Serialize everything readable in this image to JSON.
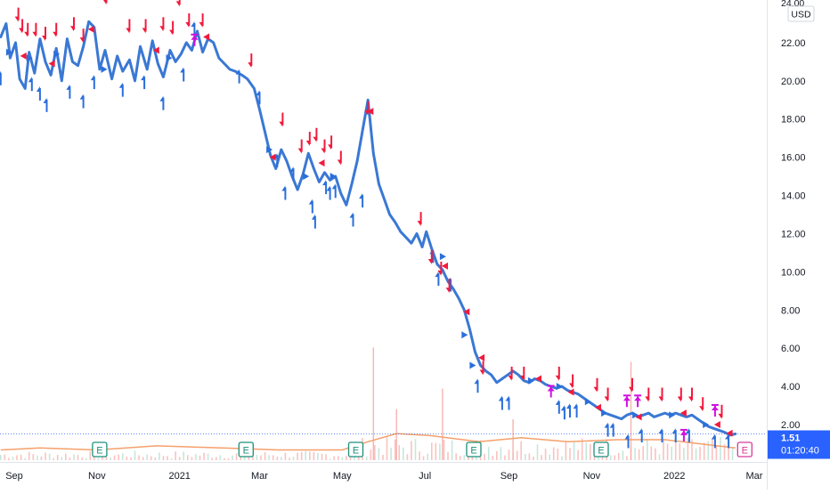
{
  "chart_data": {
    "type": "line",
    "currency": "USD",
    "x_ticks": [
      "Sep",
      "Nov",
      "2021",
      "Mar",
      "May",
      "Jul",
      "Sep",
      "Nov",
      "2022",
      "Mar"
    ],
    "y_ticks": [
      "24.00",
      "22.00",
      "20.00",
      "18.00",
      "16.00",
      "14.00",
      "12.00",
      "10.00",
      "8.00",
      "6.00",
      "4.00",
      "2.00"
    ],
    "ylim": [
      0.5,
      24.2
    ],
    "grid": false,
    "series": [
      {
        "points": [
          [
            "2020-08-22",
            22.3
          ],
          [
            "2020-08-26",
            23.0
          ],
          [
            "2020-08-29",
            21.2
          ],
          [
            "2020-09-02",
            22.0
          ],
          [
            "2020-09-05",
            20.1
          ],
          [
            "2020-09-09",
            19.6
          ],
          [
            "2020-09-12",
            21.5
          ],
          [
            "2020-09-16",
            20.4
          ],
          [
            "2020-09-20",
            22.2
          ],
          [
            "2020-09-24",
            21.0
          ],
          [
            "2020-09-28",
            20.3
          ],
          [
            "2020-10-02",
            21.7
          ],
          [
            "2020-10-06",
            20.0
          ],
          [
            "2020-10-10",
            22.2
          ],
          [
            "2020-10-14",
            21.0
          ],
          [
            "2020-10-18",
            20.8
          ],
          [
            "2020-10-22",
            21.8
          ],
          [
            "2020-10-26",
            23.1
          ],
          [
            "2020-10-30",
            22.8
          ],
          [
            "2020-11-03",
            20.6
          ],
          [
            "2020-11-07",
            21.6
          ],
          [
            "2020-11-12",
            20.1
          ],
          [
            "2020-11-16",
            21.3
          ],
          [
            "2020-11-20",
            20.5
          ],
          [
            "2020-11-25",
            21.1
          ],
          [
            "2020-11-29",
            20.0
          ],
          [
            "2020-12-03",
            21.8
          ],
          [
            "2020-12-08",
            20.6
          ],
          [
            "2020-12-12",
            22.1
          ],
          [
            "2020-12-16",
            20.9
          ],
          [
            "2020-12-20",
            20.2
          ],
          [
            "2020-12-25",
            21.6
          ],
          [
            "2020-12-29",
            21.0
          ],
          [
            "2021-01-02",
            21.4
          ],
          [
            "2021-01-06",
            22.0
          ],
          [
            "2021-01-10",
            21.6
          ],
          [
            "2021-01-14",
            22.6
          ],
          [
            "2021-01-18",
            21.5
          ],
          [
            "2021-01-22",
            22.2
          ],
          [
            "2021-01-26",
            22.0
          ],
          [
            "2021-01-30",
            21.2
          ],
          [
            "2021-02-03",
            20.9
          ],
          [
            "2021-02-07",
            20.6
          ],
          [
            "2021-02-11",
            20.5
          ],
          [
            "2021-02-16",
            20.3
          ],
          [
            "2021-02-20",
            20.1
          ],
          [
            "2021-02-25",
            19.6
          ],
          [
            "2021-03-01",
            18.5
          ],
          [
            "2021-03-05",
            17.3
          ],
          [
            "2021-03-09",
            16.1
          ],
          [
            "2021-03-13",
            15.4
          ],
          [
            "2021-03-17",
            16.4
          ],
          [
            "2021-03-21",
            15.8
          ],
          [
            "2021-03-25",
            15.0
          ],
          [
            "2021-03-29",
            14.3
          ],
          [
            "2021-04-02",
            15.1
          ],
          [
            "2021-04-06",
            16.2
          ],
          [
            "2021-04-10",
            15.4
          ],
          [
            "2021-04-14",
            14.7
          ],
          [
            "2021-04-18",
            15.2
          ],
          [
            "2021-04-22",
            14.8
          ],
          [
            "2021-04-26",
            15.0
          ],
          [
            "2021-04-30",
            14.1
          ],
          [
            "2021-05-04",
            13.5
          ],
          [
            "2021-05-08",
            14.6
          ],
          [
            "2021-05-12",
            15.8
          ],
          [
            "2021-05-16",
            17.4
          ],
          [
            "2021-05-20",
            19.0
          ],
          [
            "2021-05-24",
            16.2
          ],
          [
            "2021-05-28",
            14.6
          ],
          [
            "2021-06-01",
            13.8
          ],
          [
            "2021-06-05",
            13.0
          ],
          [
            "2021-06-09",
            12.6
          ],
          [
            "2021-06-13",
            12.1
          ],
          [
            "2021-06-17",
            11.8
          ],
          [
            "2021-06-21",
            11.5
          ],
          [
            "2021-06-25",
            12.0
          ],
          [
            "2021-06-29",
            11.3
          ],
          [
            "2021-07-02",
            12.1
          ],
          [
            "2021-07-06",
            11.2
          ],
          [
            "2021-07-10",
            10.4
          ],
          [
            "2021-07-14",
            10.1
          ],
          [
            "2021-07-18",
            9.5
          ],
          [
            "2021-07-22",
            9.1
          ],
          [
            "2021-07-26",
            8.6
          ],
          [
            "2021-07-30",
            8.0
          ],
          [
            "2021-08-03",
            7.0
          ],
          [
            "2021-08-07",
            5.8
          ],
          [
            "2021-08-11",
            5.1
          ],
          [
            "2021-08-15",
            4.8
          ],
          [
            "2021-08-19",
            4.6
          ],
          [
            "2021-08-23",
            4.2
          ],
          [
            "2021-08-27",
            4.4
          ],
          [
            "2021-08-31",
            4.6
          ],
          [
            "2021-09-04",
            4.8
          ],
          [
            "2021-09-08",
            4.6
          ],
          [
            "2021-09-12",
            4.3
          ],
          [
            "2021-09-16",
            4.2
          ],
          [
            "2021-09-20",
            4.4
          ],
          [
            "2021-09-24",
            4.3
          ],
          [
            "2021-09-28",
            4.1
          ],
          [
            "2021-10-02",
            4.0
          ],
          [
            "2021-10-06",
            3.9
          ],
          [
            "2021-10-10",
            4.0
          ],
          [
            "2021-10-14",
            3.8
          ],
          [
            "2021-10-18",
            3.7
          ],
          [
            "2021-10-22",
            3.6
          ],
          [
            "2021-10-26",
            3.4
          ],
          [
            "2021-10-30",
            3.2
          ],
          [
            "2021-11-03",
            3.0
          ],
          [
            "2021-11-07",
            2.8
          ],
          [
            "2021-11-11",
            2.6
          ],
          [
            "2021-11-15",
            2.5
          ],
          [
            "2021-11-19",
            2.4
          ],
          [
            "2021-11-23",
            2.3
          ],
          [
            "2021-11-27",
            2.5
          ],
          [
            "2021-12-01",
            2.6
          ],
          [
            "2021-12-05",
            2.4
          ],
          [
            "2021-12-09",
            2.5
          ],
          [
            "2021-12-13",
            2.6
          ],
          [
            "2021-12-17",
            2.4
          ],
          [
            "2021-12-21",
            2.5
          ],
          [
            "2021-12-25",
            2.6
          ],
          [
            "2021-12-29",
            2.5
          ],
          [
            "2022-01-02",
            2.6
          ],
          [
            "2022-01-06",
            2.5
          ],
          [
            "2022-01-10",
            2.4
          ],
          [
            "2022-01-14",
            2.5
          ],
          [
            "2022-01-18",
            2.3
          ],
          [
            "2022-01-22",
            2.1
          ],
          [
            "2022-01-26",
            1.9
          ],
          [
            "2022-01-30",
            1.8
          ],
          [
            "2022-02-03",
            1.7
          ],
          [
            "2022-02-07",
            1.6
          ],
          [
            "2022-02-11",
            1.45
          ],
          [
            "2022-02-15",
            1.51
          ]
        ]
      }
    ],
    "up_arrows": [
      [
        "2020-08-22",
        20.0
      ],
      [
        "2020-09-14",
        19.7
      ],
      [
        "2020-09-20",
        19.2
      ],
      [
        "2020-09-25",
        18.6
      ],
      [
        "2020-10-12",
        19.3
      ],
      [
        "2020-10-22",
        18.8
      ],
      [
        "2020-10-30",
        19.8
      ],
      [
        "2020-11-20",
        19.4
      ],
      [
        "2020-12-06",
        19.8
      ],
      [
        "2020-12-20",
        18.7
      ],
      [
        "2021-01-04",
        20.2
      ],
      [
        "2021-01-12",
        22.6
      ],
      [
        "2021-02-14",
        20.1
      ],
      [
        "2021-03-01",
        19.0
      ],
      [
        "2021-03-14",
        15.7
      ],
      [
        "2021-03-20",
        14.0
      ],
      [
        "2021-03-26",
        15.0
      ],
      [
        "2021-04-09",
        13.3
      ],
      [
        "2021-04-11",
        12.5
      ],
      [
        "2021-04-19",
        14.3
      ],
      [
        "2021-04-22",
        14.0
      ],
      [
        "2021-04-26",
        14.1
      ],
      [
        "2021-05-09",
        12.6
      ],
      [
        "2021-05-16",
        13.6
      ],
      [
        "2021-07-07",
        10.7
      ],
      [
        "2021-07-11",
        9.5
      ],
      [
        "2021-07-20",
        9.2
      ],
      [
        "2021-08-09",
        3.9
      ],
      [
        "2021-08-27",
        3.0
      ],
      [
        "2021-09-01",
        3.0
      ],
      [
        "2021-10-08",
        2.8
      ],
      [
        "2021-10-12",
        2.5
      ],
      [
        "2021-10-16",
        2.6
      ],
      [
        "2021-10-21",
        2.6
      ],
      [
        "2021-11-13",
        1.6
      ],
      [
        "2021-11-17",
        1.6
      ],
      [
        "2021-11-28",
        1.0
      ],
      [
        "2021-12-08",
        1.3
      ],
      [
        "2021-12-23",
        1.3
      ],
      [
        "2022-01-02",
        1.3
      ],
      [
        "2022-01-12",
        1.3
      ],
      [
        "2022-01-31",
        1.0
      ],
      [
        "2022-02-10",
        1.0
      ]
    ],
    "down_arrows": [
      [
        "2020-09-04",
        23.6
      ],
      [
        "2020-09-07",
        23.0
      ],
      [
        "2020-09-11",
        22.8
      ],
      [
        "2020-09-17",
        22.8
      ],
      [
        "2020-09-24",
        22.6
      ],
      [
        "2020-10-02",
        22.8
      ],
      [
        "2020-10-15",
        23.1
      ],
      [
        "2020-10-22",
        22.5
      ],
      [
        "2020-11-08",
        24.5
      ],
      [
        "2020-11-25",
        23.0
      ],
      [
        "2020-12-07",
        23.0
      ],
      [
        "2020-12-20",
        23.1
      ],
      [
        "2020-12-27",
        22.9
      ],
      [
        "2021-01-01",
        24.4
      ],
      [
        "2021-01-08",
        23.3
      ],
      [
        "2021-01-18",
        23.3
      ],
      [
        "2021-02-23",
        21.2
      ],
      [
        "2021-03-18",
        18.1
      ],
      [
        "2021-04-01",
        16.7
      ],
      [
        "2021-04-07",
        17.1
      ],
      [
        "2021-04-12",
        17.3
      ],
      [
        "2021-04-18",
        16.7
      ],
      [
        "2021-04-23",
        16.9
      ],
      [
        "2021-04-30",
        16.1
      ],
      [
        "2021-05-20",
        18.7
      ],
      [
        "2021-06-28",
        12.9
      ],
      [
        "2021-07-06",
        10.9
      ],
      [
        "2021-07-13",
        10.3
      ],
      [
        "2021-07-19",
        9.4
      ],
      [
        "2021-08-13",
        5.1
      ],
      [
        "2021-09-03",
        4.8
      ],
      [
        "2021-09-12",
        4.8
      ],
      [
        "2021-10-08",
        4.8
      ],
      [
        "2021-10-18",
        4.4
      ],
      [
        "2021-11-05",
        4.2
      ],
      [
        "2021-11-13",
        3.7
      ],
      [
        "2021-12-01",
        4.2
      ],
      [
        "2021-12-13",
        3.7
      ],
      [
        "2021-12-23",
        3.7
      ],
      [
        "2022-01-06",
        3.7
      ],
      [
        "2022-01-14",
        3.7
      ],
      [
        "2022-01-22",
        3.2
      ],
      [
        "2022-02-05",
        2.8
      ]
    ],
    "right_markers": [
      [
        "2020-08-28",
        21.5
      ],
      [
        "2020-09-12",
        21.2
      ],
      [
        "2020-10-02",
        21.4
      ],
      [
        "2020-11-06",
        20.6
      ],
      [
        "2020-12-24",
        21.2
      ],
      [
        "2021-03-08",
        16.4
      ],
      [
        "2021-04-04",
        15.0
      ],
      [
        "2021-04-24",
        15.0
      ],
      [
        "2021-07-14",
        10.8
      ],
      [
        "2021-07-30",
        6.7
      ],
      [
        "2021-08-05",
        5.1
      ],
      [
        "2021-09-17",
        4.3
      ],
      [
        "2021-10-08",
        4.0
      ],
      [
        "2021-10-29",
        3.2
      ],
      [
        "2021-11-10",
        2.6
      ],
      [
        "2021-12-03",
        2.5
      ],
      [
        "2021-12-30",
        2.5
      ],
      [
        "2022-01-24",
        2.0
      ]
    ],
    "left_markers": [
      [
        "2020-09-08",
        21.3
      ],
      [
        "2020-09-29",
        20.9
      ],
      [
        "2020-10-28",
        22.7
      ],
      [
        "2020-12-15",
        21.6
      ],
      [
        "2021-01-21",
        22.3
      ],
      [
        "2021-03-11",
        16.0
      ],
      [
        "2021-04-16",
        15.7
      ],
      [
        "2021-05-22",
        18.4
      ],
      [
        "2021-07-16",
        10.3
      ],
      [
        "2021-08-01",
        7.9
      ],
      [
        "2021-08-12",
        5.5
      ],
      [
        "2021-09-23",
        4.4
      ],
      [
        "2021-10-17",
        3.7
      ],
      [
        "2021-11-06",
        2.9
      ],
      [
        "2021-12-06",
        2.4
      ],
      [
        "2022-01-08",
        2.6
      ],
      [
        "2022-02-02",
        2.0
      ],
      [
        "2022-02-11",
        1.55
      ]
    ],
    "special_markers": [
      [
        "2021-01-12",
        22.1
      ],
      [
        "2021-10-02",
        3.7
      ],
      [
        "2021-11-27",
        3.2
      ],
      [
        "2021-12-05",
        3.2
      ],
      [
        "2022-01-08",
        1.4
      ],
      [
        "2022-01-31",
        2.7
      ]
    ],
    "volume": {
      "spikes": [
        [
          "2021-05-24",
          0.55
        ],
        [
          "2021-06-10",
          0.25
        ],
        [
          "2021-07-14",
          0.35
        ],
        [
          "2021-11-30",
          0.48
        ],
        [
          "2021-09-04",
          0.2
        ]
      ],
      "moving_average": [
        [
          "2020-08-22",
          0.05
        ],
        [
          "2020-09-20",
          0.06
        ],
        [
          "2020-11-01",
          0.05
        ],
        [
          "2020-12-15",
          0.07
        ],
        [
          "2021-02-01",
          0.06
        ],
        [
          "2021-03-15",
          0.05
        ],
        [
          "2021-05-01",
          0.05
        ],
        [
          "2021-05-20",
          0.09
        ],
        [
          "2021-06-10",
          0.13
        ],
        [
          "2021-07-05",
          0.12
        ],
        [
          "2021-08-10",
          0.09
        ],
        [
          "2021-09-10",
          0.11
        ],
        [
          "2021-10-15",
          0.09
        ],
        [
          "2021-11-20",
          0.1
        ],
        [
          "2021-12-25",
          0.1
        ],
        [
          "2022-02-15",
          0.06
        ]
      ]
    },
    "earnings_markers": [
      "2020-11-03",
      "2021-02-19",
      "2021-05-11",
      "2021-08-06",
      "2021-11-08",
      "2022-02-22"
    ],
    "last_price": {
      "value": "1.51",
      "countdown": "01:20:40"
    },
    "colors": {
      "line": "#3a78d4",
      "up_arrow": "#2a6fdb",
      "down_arrow": "#f21a3c",
      "special": "#d10fe0",
      "volume_ma": "#f5a06b",
      "volume_bar": "#f7b4b0",
      "earnings": "#1b8f7a",
      "earnings_upcoming": "#d63a9a",
      "label_bg": "#2962ff"
    }
  }
}
